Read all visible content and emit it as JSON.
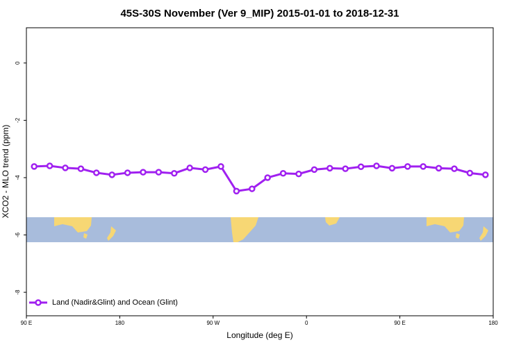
{
  "chart_data": {
    "type": "line",
    "title": "45S-30S November (Ver 9_MIP)   2015-01-01 to 2018-12-31",
    "x_label": "Longitude (deg E)",
    "y_label": "XCO2 - MLO trend (ppm)",
    "x": [
      97.5,
      112.5,
      127.5,
      142.5,
      157.5,
      172.5,
      187.5,
      202.5,
      217.5,
      232.5,
      247.5,
      262.5,
      277.5,
      292.5,
      307.5,
      322.5,
      337.5,
      352.5,
      367.5,
      382.5,
      397.5,
      412.5,
      427.5,
      442.5,
      457.5,
      472.5,
      487.5,
      502.5,
      517.5,
      532.5
    ],
    "series": [
      {
        "name": "Land (Nadir&Glint) and Ocean (Glint)",
        "color": "#a020f0",
        "values": [
          -3.61,
          -3.59,
          -3.66,
          -3.69,
          -3.83,
          -3.9,
          -3.83,
          -3.81,
          -3.81,
          -3.85,
          -3.66,
          -3.72,
          -3.61,
          -4.47,
          -4.39,
          -4.0,
          -3.85,
          -3.87,
          -3.72,
          -3.67,
          -3.69,
          -3.62,
          -3.59,
          -3.67,
          -3.61,
          -3.61,
          -3.67,
          -3.69,
          -3.84,
          -3.9
        ]
      }
    ],
    "xlim": [
      90,
      540
    ],
    "xticks": [
      {
        "value": 90,
        "label": "90 E"
      },
      180,
      {
        "value": 270,
        "label": "90 W"
      },
      {
        "value": 360,
        "label": "0"
      },
      {
        "value": 450,
        "label": "90 E"
      },
      {
        "value": 540,
        "label": "180"
      }
    ],
    "ylim": [
      -8.82,
      1.23
    ],
    "yticks": [
      0,
      -2,
      -4,
      -6,
      -8
    ],
    "legend": "bottom-left"
  }
}
